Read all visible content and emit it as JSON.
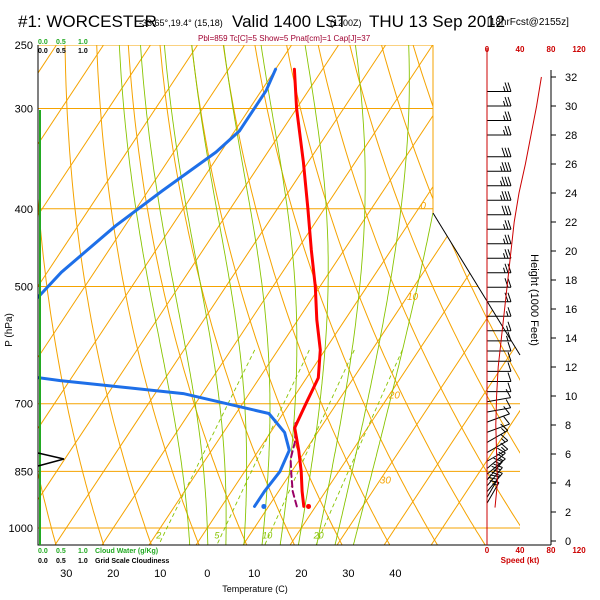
{
  "title": {
    "station": "#1: WORCESTER",
    "coords": "-33.65°,19.4° (15,18)",
    "valid": "Valid 1400 LST",
    "utc": "(1200Z)",
    "date": "THU 13 Sep 2012",
    "forecast": "[18hrFcst@2155z]",
    "indices": "Pbl=859 Tc[C]=5 Show=5 Pnat[cm]=1 Cap[J]=37"
  },
  "colors": {
    "temperature": "#ff0000",
    "dewpoint": "#1e6fe8",
    "parcel": "#990066",
    "isotherm": "#f5a300",
    "dry_adiabat": "#f5a300",
    "moist_adiabat": "#88c400",
    "mixing_ratio": "#88c400",
    "cloud_water": "#22aa22",
    "speed_profile": "#cc0000"
  },
  "labels": {
    "pressure_axis": "P (hPa)",
    "temperature_axis": "Temperature (C)",
    "height_axis": "Height (1000 Feet)",
    "cloud_water": "Cloud Water (g/Kg)",
    "grid_scale_cloudiness": "Grid Scale Cloudiness",
    "speed_axis": "Speed (kt)"
  },
  "cloud_scale_top": [
    "0.0",
    "0.5",
    "1.0"
  ],
  "cloud_scale_top_black": [
    "0.0",
    "0.5",
    "1.0"
  ],
  "cloud_scale_bottom": [
    "0.0",
    "0.5",
    "1.0"
  ],
  "cloud_scale_bottom_black": [
    "0.0",
    "0.5",
    "1.0"
  ],
  "speed_ticks": [
    "0",
    "40",
    "80",
    "120"
  ],
  "chart_data": {
    "type": "skew-t",
    "pressure_ticks": [
      250,
      300,
      400,
      500,
      700,
      850,
      1000
    ],
    "temperature_ticks": [
      -30,
      -20,
      -10,
      0,
      10,
      20,
      30,
      40
    ],
    "temperature_tick_labels": [
      "30",
      "20",
      "10",
      "0",
      "10",
      "20",
      "30",
      "40"
    ],
    "height_ticks_kft": [
      0,
      2,
      4,
      6,
      8,
      10,
      12,
      14,
      16,
      18,
      20,
      22,
      24,
      26,
      28,
      30,
      32
    ],
    "plim_hpa": [
      250,
      1050
    ],
    "xlim_c_at_1000hpa": [
      -36,
      48
    ],
    "skew_c_per_ln_unit": 49,
    "isotherms_c": [
      -140,
      -130,
      -120,
      -110,
      -100,
      -90,
      -80,
      -70,
      -60,
      -50,
      -40,
      -30,
      -20,
      -10,
      0,
      10,
      20,
      30,
      40,
      50
    ],
    "isotherm_labels": [
      {
        "text": "-10",
        "t": -10,
        "p": 300
      },
      {
        "text": "0",
        "t": 0,
        "p": 400
      },
      {
        "text": "10",
        "t": 10,
        "p": 520
      },
      {
        "text": "20",
        "t": 20,
        "p": 690
      },
      {
        "text": "30",
        "t": 30,
        "p": 880
      },
      {
        "text": "0",
        "t": 0,
        "p": 330
      },
      {
        "text": "10",
        "t": 10,
        "p": 410
      },
      {
        "text": "20",
        "t": 20,
        "p": 470
      },
      {
        "text": "30",
        "t": 30,
        "p": 530
      }
    ],
    "dry_adiabats_k": [
      240,
      250,
      260,
      270,
      280,
      290,
      300,
      310,
      320,
      330,
      340,
      350,
      360,
      370,
      380,
      390,
      400,
      410,
      420
    ],
    "moist_adiabats_c": [
      -4,
      0,
      4,
      8,
      12,
      16,
      20,
      24,
      28,
      32
    ],
    "mixing_ratio_gkg": [
      2,
      5,
      10,
      20
    ],
    "temperature_profile": [
      {
        "p": 268,
        "t": -46
      },
      {
        "p": 300,
        "t": -40
      },
      {
        "p": 350,
        "t": -31
      },
      {
        "p": 400,
        "t": -23.5
      },
      {
        "p": 450,
        "t": -17
      },
      {
        "p": 500,
        "t": -11
      },
      {
        "p": 550,
        "t": -6
      },
      {
        "p": 600,
        "t": -1
      },
      {
        "p": 650,
        "t": 2.5
      },
      {
        "p": 700,
        "t": 3.5
      },
      {
        "p": 750,
        "t": 4.5
      },
      {
        "p": 800,
        "t": 8.5
      },
      {
        "p": 850,
        "t": 12
      },
      {
        "p": 900,
        "t": 15
      },
      {
        "p": 940,
        "t": 17.5
      }
    ],
    "dewpoint_profile": [
      {
        "p": 268,
        "t": -50
      },
      {
        "p": 285,
        "t": -49
      },
      {
        "p": 320,
        "t": -49
      },
      {
        "p": 340,
        "t": -51
      },
      {
        "p": 380,
        "t": -57
      },
      {
        "p": 420,
        "t": -62
      },
      {
        "p": 480,
        "t": -67
      },
      {
        "p": 530,
        "t": -69
      },
      {
        "p": 600,
        "t": -67
      },
      {
        "p": 640,
        "t": -66
      },
      {
        "p": 655,
        "t": -52
      },
      {
        "p": 680,
        "t": -24
      },
      {
        "p": 720,
        "t": -3
      },
      {
        "p": 760,
        "t": 3
      },
      {
        "p": 800,
        "t": 6.5
      },
      {
        "p": 850,
        "t": 7.5
      },
      {
        "p": 900,
        "t": 7
      },
      {
        "p": 940,
        "t": 7
      }
    ],
    "parcel_profile": [
      {
        "p": 940,
        "t": 16
      },
      {
        "p": 900,
        "t": 13
      },
      {
        "p": 860,
        "t": 10.5
      },
      {
        "p": 820,
        "t": 8
      },
      {
        "p": 780,
        "t": 6.5
      },
      {
        "p": 740,
        "t": 4
      }
    ],
    "surface_points": [
      {
        "name": "dewpoint",
        "p": 940,
        "t": 9
      },
      {
        "name": "temperature",
        "p": 940,
        "t": 18.5
      }
    ],
    "wind_barbs": [
      {
        "kft": 31,
        "dir": 270,
        "kt": 25
      },
      {
        "kft": 30,
        "dir": 270,
        "kt": 25
      },
      {
        "kft": 29,
        "dir": 270,
        "kt": 25
      },
      {
        "kft": 28,
        "dir": 270,
        "kt": 25
      },
      {
        "kft": 26.5,
        "dir": 270,
        "kt": 30
      },
      {
        "kft": 25.5,
        "dir": 270,
        "kt": 35
      },
      {
        "kft": 24.5,
        "dir": 270,
        "kt": 35
      },
      {
        "kft": 23.5,
        "dir": 270,
        "kt": 35
      },
      {
        "kft": 22.5,
        "dir": 270,
        "kt": 30
      },
      {
        "kft": 21.5,
        "dir": 270,
        "kt": 25
      },
      {
        "kft": 20.5,
        "dir": 270,
        "kt": 25
      },
      {
        "kft": 19.5,
        "dir": 270,
        "kt": 25
      },
      {
        "kft": 18.5,
        "dir": 270,
        "kt": 25
      },
      {
        "kft": 17.5,
        "dir": 270,
        "kt": 20
      },
      {
        "kft": 16.5,
        "dir": 270,
        "kt": 20
      },
      {
        "kft": 15.5,
        "dir": 270,
        "kt": 15
      },
      {
        "kft": 14.5,
        "dir": 270,
        "kt": 15
      },
      {
        "kft": 13.8,
        "dir": 270,
        "kt": 15
      },
      {
        "kft": 13.1,
        "dir": 270,
        "kt": 10
      },
      {
        "kft": 12.4,
        "dir": 270,
        "kt": 10
      },
      {
        "kft": 11.7,
        "dir": 270,
        "kt": 10
      },
      {
        "kft": 11,
        "dir": 270,
        "kt": 10
      },
      {
        "kft": 10.3,
        "dir": 270,
        "kt": 10
      },
      {
        "kft": 9.6,
        "dir": 260,
        "kt": 10
      },
      {
        "kft": 8.9,
        "dir": 260,
        "kt": 10
      },
      {
        "kft": 8.2,
        "dir": 250,
        "kt": 10
      },
      {
        "kft": 7.5,
        "dir": 250,
        "kt": 10
      },
      {
        "kft": 6.8,
        "dir": 240,
        "kt": 15
      },
      {
        "kft": 6.1,
        "dir": 240,
        "kt": 15
      },
      {
        "kft": 5.5,
        "dir": 240,
        "kt": 15
      },
      {
        "kft": 5,
        "dir": 230,
        "kt": 15
      },
      {
        "kft": 4.6,
        "dir": 230,
        "kt": 15
      },
      {
        "kft": 4.2,
        "dir": 220,
        "kt": 15
      },
      {
        "kft": 3.8,
        "dir": 220,
        "kt": 20
      },
      {
        "kft": 3.4,
        "dir": 220,
        "kt": 20
      },
      {
        "kft": 3,
        "dir": 210,
        "kt": 20
      },
      {
        "kft": 2.6,
        "dir": 210,
        "kt": 15
      }
    ],
    "speed_profile_kt": [
      {
        "kft": 32,
        "kt": 68
      },
      {
        "kft": 30,
        "kt": 62
      },
      {
        "kft": 28,
        "kt": 55
      },
      {
        "kft": 26,
        "kt": 48
      },
      {
        "kft": 24,
        "kt": 40
      },
      {
        "kft": 22,
        "kt": 34
      },
      {
        "kft": 20,
        "kt": 30
      },
      {
        "kft": 18,
        "kt": 26
      },
      {
        "kft": 16,
        "kt": 22
      },
      {
        "kft": 14,
        "kt": 18
      },
      {
        "kft": 12,
        "kt": 14
      },
      {
        "kft": 10,
        "kt": 12
      },
      {
        "kft": 8,
        "kt": 11
      },
      {
        "kft": 6,
        "kt": 12
      },
      {
        "kft": 4,
        "kt": 13
      },
      {
        "kft": 2.3,
        "kt": 10
      }
    ]
  }
}
